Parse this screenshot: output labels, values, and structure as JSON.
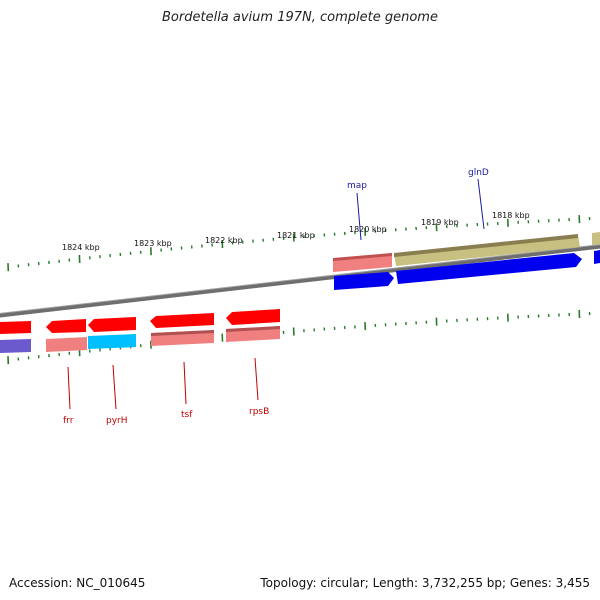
{
  "title": "Bordetella avium 197N, complete genome",
  "footer": {
    "accession": "Accession: NC_010645",
    "summary": "Topology: circular; Length: 3,732,255 bp; Genes: 3,455"
  },
  "scale_labels": [
    "1824 kbp",
    "1823 kbp",
    "1822 kbp",
    "1821 kbp",
    "1820 kbp",
    "1819 kbp",
    "1818 kbp"
  ],
  "gene_labels_forward": [
    "map",
    "glnD"
  ],
  "gene_labels_reverse": [
    "frr",
    "pyrH",
    "tsf",
    "rpsB"
  ],
  "colors": {
    "backbone": "#808080",
    "tick": "#2a7a2a",
    "gene_red": "#ff0000",
    "gene_pink": "#f08080",
    "gene_blue": "#0000ee",
    "gene_cyan": "#00bfff",
    "gene_olive": "#b8b070",
    "gene_purple": "#6a5acd",
    "label_forward": "#1a1aa0",
    "label_reverse": "#c00000"
  }
}
